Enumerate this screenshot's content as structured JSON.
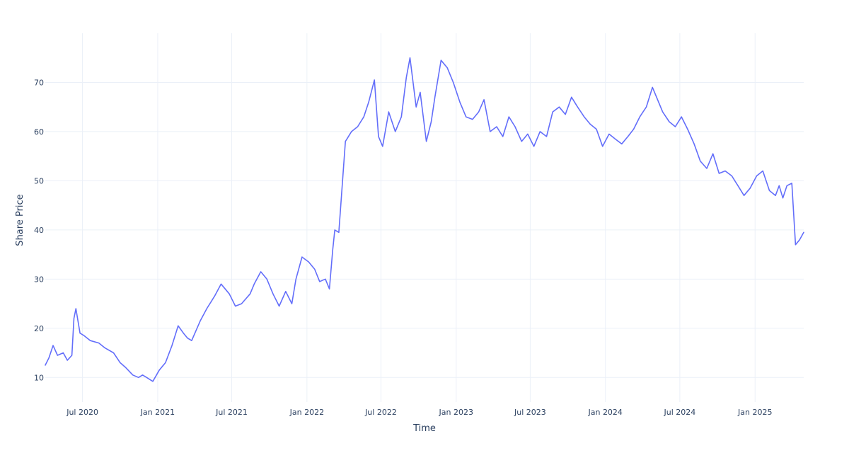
{
  "chart_data": {
    "type": "line",
    "title": "",
    "xlabel": "Time",
    "ylabel": "Share Price",
    "xlim": [
      "2020-04-01",
      "2025-04-30"
    ],
    "ylim": [
      5,
      80
    ],
    "grid": true,
    "line_color": "#636efa",
    "x_ticks": [
      {
        "date": "2020-07-01",
        "label": "Jul 2020"
      },
      {
        "date": "2021-01-01",
        "label": "Jan 2021"
      },
      {
        "date": "2021-07-01",
        "label": "Jul 2021"
      },
      {
        "date": "2022-01-01",
        "label": "Jan 2022"
      },
      {
        "date": "2022-07-01",
        "label": "Jul 2022"
      },
      {
        "date": "2023-01-01",
        "label": "Jan 2023"
      },
      {
        "date": "2023-07-01",
        "label": "Jul 2023"
      },
      {
        "date": "2024-01-01",
        "label": "Jan 2024"
      },
      {
        "date": "2024-07-01",
        "label": "Jul 2024"
      },
      {
        "date": "2025-01-01",
        "label": "Jan 2025"
      }
    ],
    "y_ticks": [
      10,
      20,
      30,
      40,
      50,
      60,
      70
    ],
    "series": [
      {
        "x": [
          "2020-04-01",
          "2020-04-10",
          "2020-04-20",
          "2020-05-01",
          "2020-05-15",
          "2020-05-25",
          "2020-06-05",
          "2020-06-10",
          "2020-06-15",
          "2020-06-25",
          "2020-07-05",
          "2020-07-20",
          "2020-08-10",
          "2020-08-25",
          "2020-09-15",
          "2020-10-01",
          "2020-10-15",
          "2020-11-01",
          "2020-11-15",
          "2020-11-25",
          "2020-12-05",
          "2020-12-20",
          "2021-01-05",
          "2021-01-20",
          "2021-02-05",
          "2021-02-20",
          "2021-03-05",
          "2021-03-15",
          "2021-03-25",
          "2021-04-15",
          "2021-05-01",
          "2021-05-20",
          "2021-06-05",
          "2021-06-25",
          "2021-07-10",
          "2021-07-25",
          "2021-08-15",
          "2021-08-25",
          "2021-09-10",
          "2021-09-25",
          "2021-10-10",
          "2021-10-25",
          "2021-11-10",
          "2021-11-25",
          "2021-12-05",
          "2021-12-20",
          "2022-01-05",
          "2022-01-20",
          "2022-02-01",
          "2022-02-15",
          "2022-02-25",
          "2022-03-05",
          "2022-03-10",
          "2022-03-20",
          "2022-04-05",
          "2022-04-20",
          "2022-05-05",
          "2022-05-20",
          "2022-06-01",
          "2022-06-15",
          "2022-06-25",
          "2022-07-05",
          "2022-07-20",
          "2022-08-05",
          "2022-08-20",
          "2022-09-01",
          "2022-09-10",
          "2022-09-25",
          "2022-10-05",
          "2022-10-20",
          "2022-11-01",
          "2022-11-10",
          "2022-11-25",
          "2022-12-10",
          "2022-12-25",
          "2023-01-10",
          "2023-01-25",
          "2023-02-10",
          "2023-02-25",
          "2023-03-10",
          "2023-03-25",
          "2023-04-10",
          "2023-04-25",
          "2023-05-10",
          "2023-05-25",
          "2023-06-10",
          "2023-06-25",
          "2023-07-10",
          "2023-07-25",
          "2023-08-10",
          "2023-08-25",
          "2023-09-10",
          "2023-09-25",
          "2023-10-10",
          "2023-10-25",
          "2023-11-10",
          "2023-11-25",
          "2023-12-10",
          "2023-12-25",
          "2024-01-10",
          "2024-01-25",
          "2024-02-10",
          "2024-02-25",
          "2024-03-10",
          "2024-03-25",
          "2024-04-10",
          "2024-04-25",
          "2024-05-05",
          "2024-05-20",
          "2024-06-05",
          "2024-06-20",
          "2024-07-05",
          "2024-07-20",
          "2024-08-05",
          "2024-08-20",
          "2024-09-05",
          "2024-09-20",
          "2024-10-05",
          "2024-10-20",
          "2024-11-05",
          "2024-11-20",
          "2024-12-05",
          "2024-12-20",
          "2025-01-05",
          "2025-01-20",
          "2025-02-05",
          "2025-02-20",
          "2025-03-01",
          "2025-03-10",
          "2025-03-20",
          "2025-04-01",
          "2025-04-10",
          "2025-04-20",
          "2025-04-30"
        ],
        "y": [
          12.5,
          14.0,
          16.5,
          14.5,
          15.0,
          13.5,
          14.5,
          22.0,
          24.0,
          19.0,
          18.5,
          17.5,
          17.0,
          16.0,
          15.0,
          13.0,
          12.0,
          10.5,
          10.0,
          10.5,
          10.0,
          9.2,
          11.5,
          13.0,
          16.5,
          20.5,
          19.0,
          18.0,
          17.5,
          21.5,
          24.0,
          26.5,
          29.0,
          27.0,
          24.5,
          25.0,
          27.0,
          29.0,
          31.5,
          30.0,
          27.0,
          24.5,
          27.5,
          25.0,
          30.0,
          34.5,
          33.5,
          32.0,
          29.5,
          30.0,
          28.0,
          36.0,
          40.0,
          39.5,
          58.0,
          60.0,
          61.0,
          63.0,
          66.0,
          70.5,
          59.0,
          57.0,
          64.0,
          60.0,
          63.0,
          71.0,
          75.0,
          65.0,
          68.0,
          58.0,
          62.0,
          67.0,
          74.5,
          73.0,
          70.0,
          66.0,
          63.0,
          62.5,
          64.0,
          66.5,
          60.0,
          61.0,
          59.0,
          63.0,
          61.0,
          58.0,
          59.5,
          57.0,
          60.0,
          59.0,
          64.0,
          65.0,
          63.5,
          67.0,
          65.0,
          63.0,
          61.5,
          60.5,
          57.0,
          59.5,
          58.5,
          57.5,
          59.0,
          60.5,
          63.0,
          65.0,
          69.0,
          67.0,
          64.0,
          62.0,
          61.0,
          63.0,
          60.5,
          57.5,
          54.0,
          52.5,
          55.5,
          51.5,
          52.0,
          51.0,
          49.0,
          47.0,
          48.5,
          51.0,
          52.0,
          48.0,
          47.0,
          49.0,
          46.5,
          49.0,
          49.5,
          37.0,
          38.0,
          39.5
        ]
      }
    ]
  }
}
